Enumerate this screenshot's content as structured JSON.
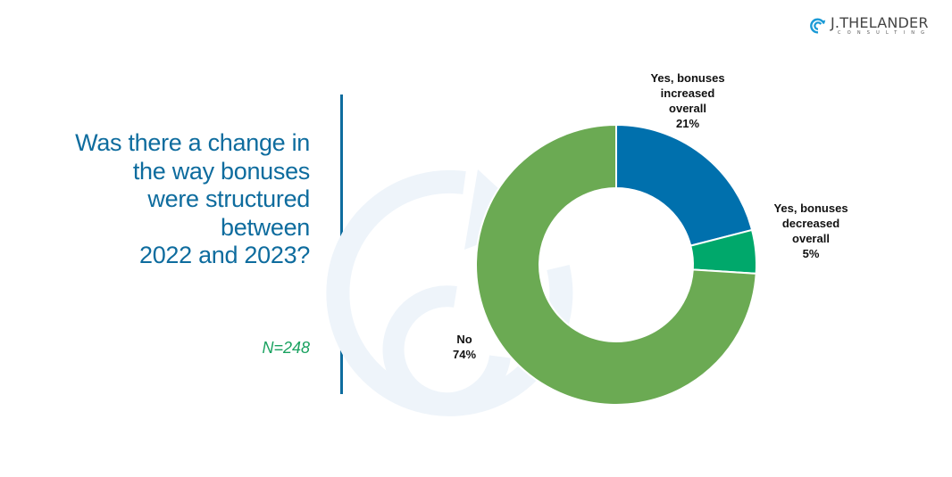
{
  "logo": {
    "name": "J.THELANDER",
    "sub": "CONSULTING",
    "icon": "spiral-arrow-icon"
  },
  "question": {
    "lines": [
      "Was there a change in",
      "the way bonuses",
      "were structured",
      "between",
      "2022 and 2023?"
    ]
  },
  "sample_size": "N=248",
  "colors": {
    "title": "#0e6c9e",
    "n_label": "#1aa260",
    "increased": "#0070ad",
    "decreased": "#00a86b",
    "no": "#63a54a",
    "watermark": "#eef4fa"
  },
  "chart_data": {
    "type": "pie",
    "variant": "donut",
    "title": "Was there a change in the way bonuses were structured between 2022 and 2023?",
    "subtitle": "N=248",
    "slices": [
      {
        "label": "Yes, bonuses increased overall",
        "label_lines": [
          "Yes, bonuses",
          "increased",
          "overall"
        ],
        "value": 21,
        "display": "21%",
        "color": "#0070ad"
      },
      {
        "label": "Yes, bonuses decreased overall",
        "label_lines": [
          "Yes, bonuses",
          "decreased",
          "overall"
        ],
        "value": 5,
        "display": "5%",
        "color": "#00a86b"
      },
      {
        "label": "No",
        "label_lines": [
          "No"
        ],
        "value": 74,
        "display": "74%",
        "color": "#63a54a"
      }
    ],
    "start_angle": "12 o'clock",
    "direction": "clockwise",
    "legend": "none (data labels outside)"
  }
}
